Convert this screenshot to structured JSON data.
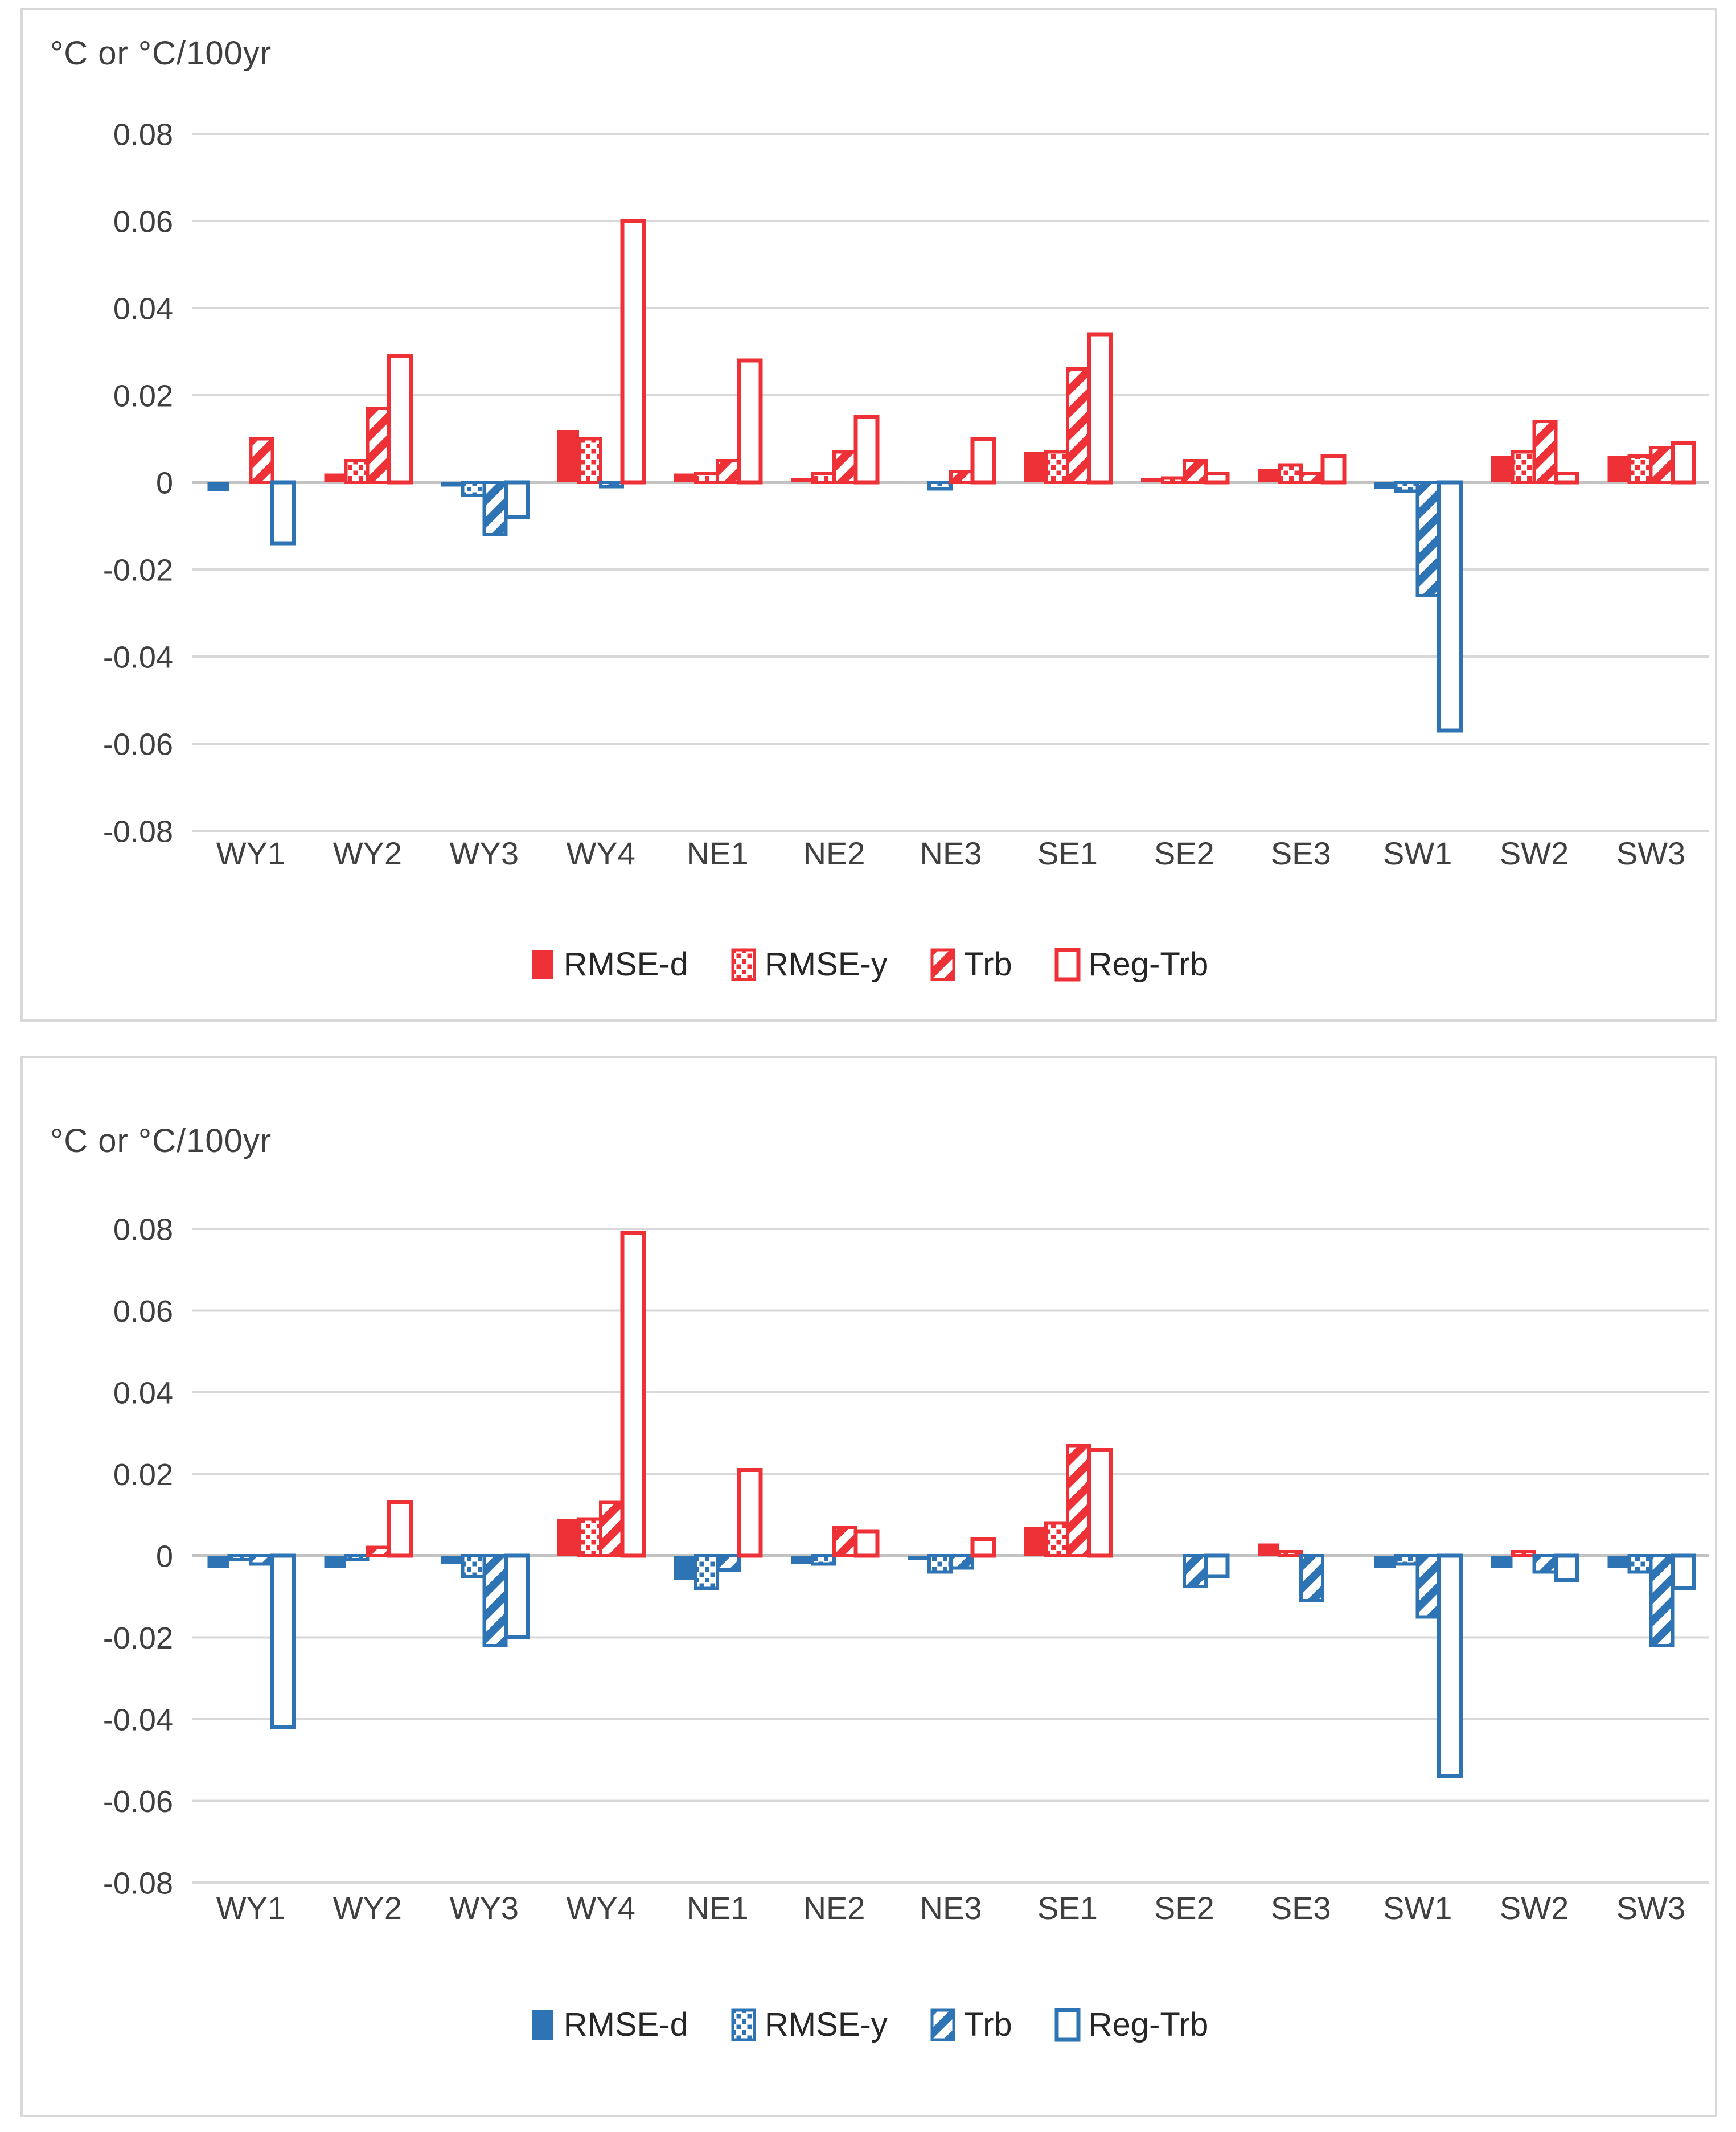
{
  "colors": {
    "positive": "#ED3137",
    "negative": "#2E74B5",
    "gridline": "#D9D9D9",
    "zero_axis": "#C3C3C3",
    "text": "#3F3F3F",
    "legend_text": "#262626",
    "panel_border": "#D9D9D9",
    "bar_interior": "#FFFFFF"
  },
  "chart_data": [
    {
      "type": "bar",
      "title": "°C or °C/100yr",
      "ylabel": "°C or °C/100yr",
      "xlabel": "",
      "ylim": [
        -0.08,
        0.08
      ],
      "grid": true,
      "legend_position": "bottom",
      "legend_color": "#ED3137",
      "sign_coloring": "positive red, negative blue",
      "yticks": [
        0.08,
        0.06,
        0.04,
        0.02,
        0,
        -0.02,
        -0.04,
        -0.06,
        -0.08
      ],
      "ytick_labels": [
        "0.08",
        "0.06",
        "0.04",
        "0.02",
        "0",
        "-0.02",
        "-0.04",
        "-0.06",
        "-0.08"
      ],
      "categories": [
        "WY1",
        "WY2",
        "WY3",
        "WY4",
        "NE1",
        "NE2",
        "NE3",
        "SE1",
        "SE2",
        "SE3",
        "SW1",
        "SW2",
        "SW3"
      ],
      "series": [
        {
          "name": "RMSE-d",
          "style": "solid",
          "values": [
            -0.002,
            0.002,
            -0.001,
            0.012,
            0.002,
            0.001,
            0,
            0.007,
            0.001,
            0.003,
            -0.0015,
            0.006,
            0.006
          ]
        },
        {
          "name": "RMSE-y",
          "style": "dotted",
          "values": [
            0,
            0.005,
            -0.003,
            0.01,
            0.002,
            0.002,
            -0.0015,
            0.007,
            0.001,
            0.004,
            -0.002,
            0.007,
            0.006
          ]
        },
        {
          "name": "Trb",
          "style": "hatched",
          "values": [
            0.01,
            0.017,
            -0.012,
            -0.001,
            0.005,
            0.007,
            0.0025,
            0.026,
            0.005,
            0.002,
            -0.026,
            0.014,
            0.008
          ]
        },
        {
          "name": "Reg-Trb",
          "style": "outline",
          "values": [
            -0.014,
            0.029,
            -0.008,
            0.06,
            0.028,
            0.015,
            0.01,
            0.034,
            0.002,
            0.006,
            -0.057,
            0.002,
            0.009
          ]
        }
      ]
    },
    {
      "type": "bar",
      "title": "°C or °C/100yr",
      "ylabel": "°C or °C/100yr",
      "xlabel": "",
      "ylim": [
        -0.08,
        0.08
      ],
      "grid": true,
      "legend_position": "bottom",
      "legend_color": "#2E74B5",
      "sign_coloring": "positive red, negative blue",
      "yticks": [
        0.08,
        0.06,
        0.04,
        0.02,
        0,
        -0.02,
        -0.04,
        -0.06,
        -0.08
      ],
      "ytick_labels": [
        "0.08",
        "0.06",
        "0.04",
        "0.02",
        "0",
        "-0.02",
        "-0.04",
        "-0.06",
        "-0.08"
      ],
      "categories": [
        "WY1",
        "WY2",
        "WY3",
        "WY4",
        "NE1",
        "NE2",
        "NE3",
        "SE1",
        "SE2",
        "SE3",
        "SW1",
        "SW2",
        "SW3"
      ],
      "series": [
        {
          "name": "RMSE-d",
          "style": "solid",
          "values": [
            -0.003,
            -0.003,
            -0.002,
            0.009,
            -0.006,
            -0.002,
            -0.001,
            0.007,
            0,
            0.003,
            -0.003,
            -0.003,
            -0.003
          ]
        },
        {
          "name": "RMSE-y",
          "style": "dotted",
          "values": [
            -0.001,
            -0.001,
            -0.005,
            0.009,
            -0.008,
            -0.002,
            -0.004,
            0.008,
            0,
            0.001,
            -0.002,
            0.001,
            -0.004
          ]
        },
        {
          "name": "Trb",
          "style": "hatched",
          "values": [
            -0.002,
            0.002,
            -0.022,
            0.013,
            -0.0035,
            0.007,
            -0.003,
            0.027,
            -0.0075,
            -0.011,
            -0.015,
            -0.004,
            -0.022
          ]
        },
        {
          "name": "Reg-Trb",
          "style": "outline",
          "values": [
            -0.042,
            0.013,
            -0.02,
            0.079,
            0.021,
            0.006,
            0.004,
            0.026,
            -0.005,
            0,
            -0.054,
            -0.006,
            -0.008
          ]
        }
      ]
    }
  ]
}
